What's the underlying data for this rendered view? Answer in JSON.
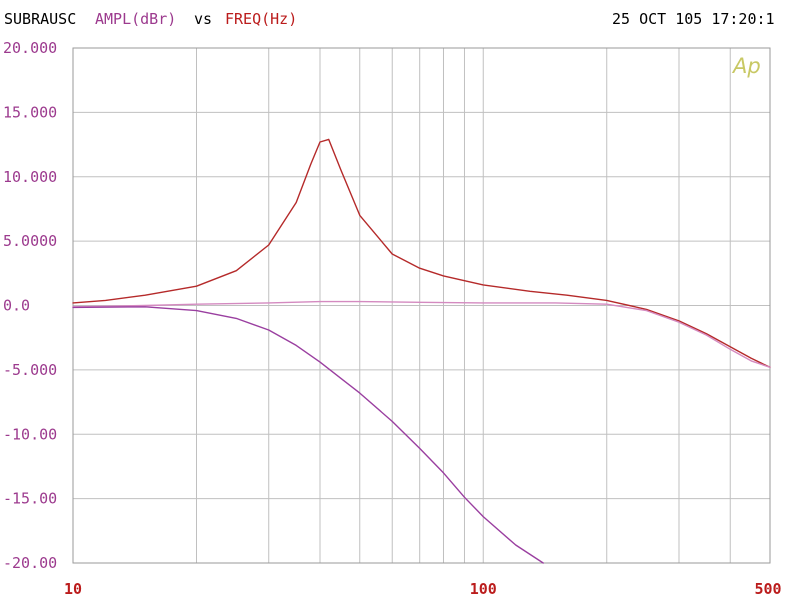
{
  "header": {
    "name": "SUBRAUSC",
    "y_quantity": "AMPL(dBr)",
    "separator": "vs",
    "x_quantity": "FREQ(Hz)",
    "timestamp": "25 OCT 105 17:20:1"
  },
  "logo_text": "Ap",
  "colors": {
    "background": "#ffffff",
    "grid": "#c0c0c0",
    "frame": "#9a9a9a",
    "y_tick_labels": "#9c3a8e",
    "x_tick_labels": "#bb1c1c",
    "header_text": "#000000",
    "logo": "#c8c864"
  },
  "chart_data": {
    "type": "line",
    "x_scale": "log",
    "xlim": [
      10,
      500
    ],
    "ylim": [
      -20,
      20
    ],
    "grid": true,
    "x_ticks": [
      {
        "value": 10,
        "label": "10"
      },
      {
        "value": 100,
        "label": "100"
      },
      {
        "value": 500,
        "label": "500"
      }
    ],
    "y_ticks": [
      {
        "value": 20,
        "label": "20.000"
      },
      {
        "value": 15,
        "label": "15.000"
      },
      {
        "value": 10,
        "label": "10.000"
      },
      {
        "value": 5,
        "label": "5.0000"
      },
      {
        "value": 0,
        "label": "0.0"
      },
      {
        "value": -5,
        "label": "-5.000"
      },
      {
        "value": -10,
        "label": "-10.00"
      },
      {
        "value": -15,
        "label": "-15.00"
      },
      {
        "value": -20,
        "label": "-20.00"
      }
    ],
    "series": [
      {
        "color": "#b52a2a",
        "x": [
          10,
          12,
          15,
          20,
          25,
          30,
          35,
          38,
          40,
          42,
          45,
          50,
          60,
          70,
          80,
          100,
          130,
          160,
          200,
          250,
          300,
          350,
          400,
          450,
          500
        ],
        "y": [
          0.2,
          0.4,
          0.8,
          1.5,
          2.7,
          4.7,
          8.0,
          11.0,
          12.7,
          12.9,
          10.5,
          7.0,
          4.0,
          2.9,
          2.3,
          1.6,
          1.1,
          0.8,
          0.4,
          -0.3,
          -1.2,
          -2.2,
          -3.2,
          -4.1,
          -4.8
        ]
      },
      {
        "color": "#d48ac0",
        "x": [
          10,
          15,
          20,
          30,
          40,
          50,
          70,
          100,
          150,
          200,
          250,
          300,
          350,
          400,
          450,
          500
        ],
        "y": [
          -0.1,
          0.0,
          0.1,
          0.2,
          0.3,
          0.3,
          0.25,
          0.2,
          0.2,
          0.1,
          -0.4,
          -1.3,
          -2.3,
          -3.4,
          -4.3,
          -4.8
        ]
      },
      {
        "color": "#9a3fa0",
        "x": [
          10,
          15,
          20,
          25,
          30,
          35,
          40,
          50,
          60,
          70,
          80,
          90,
          100,
          120,
          140
        ],
        "y": [
          -0.15,
          -0.1,
          -0.4,
          -1.0,
          -1.9,
          -3.1,
          -4.4,
          -6.8,
          -9.0,
          -11.1,
          -13.0,
          -14.9,
          -16.4,
          -18.6,
          -20.0
        ]
      }
    ]
  }
}
